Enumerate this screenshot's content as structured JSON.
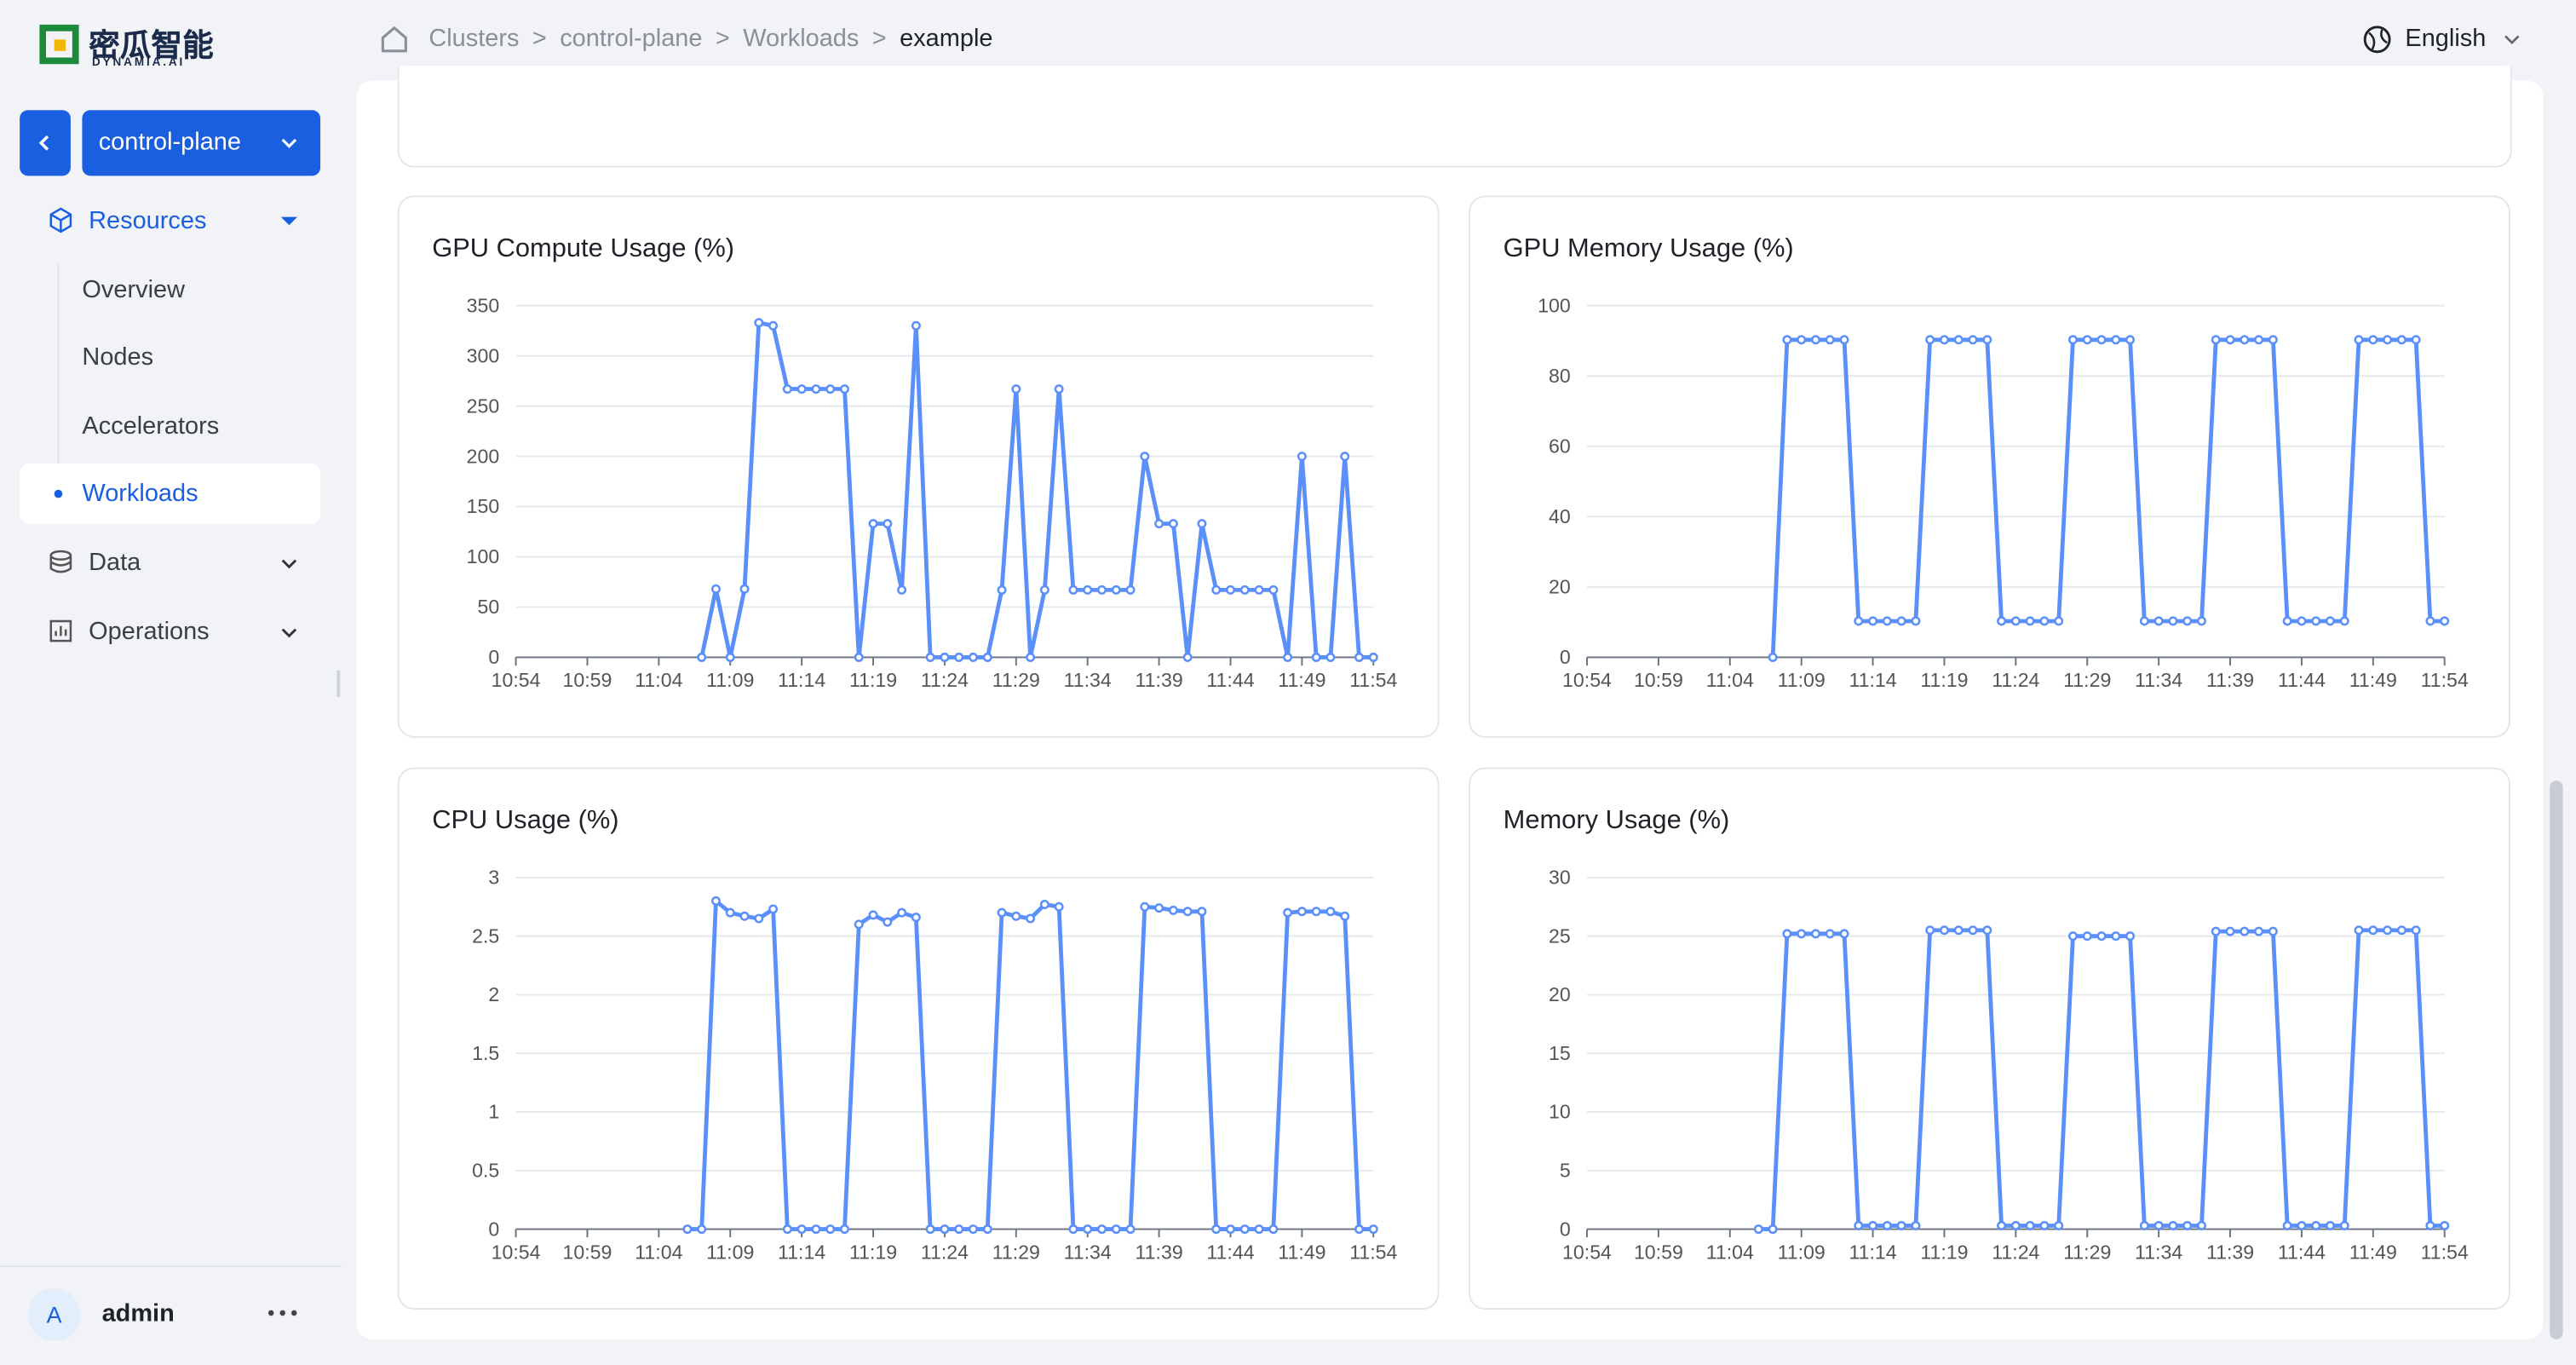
{
  "logo": {
    "name": "密瓜智能",
    "sub": "DYNAMIA.AI"
  },
  "breadcrumb": [
    "Clusters",
    "control-plane",
    "Workloads",
    "example"
  ],
  "breadcrumb_separator": ">",
  "language": "English",
  "sidebar": {
    "cluster": "control-plane",
    "menu": [
      {
        "label": "Resources",
        "children": [
          "Overview",
          "Nodes",
          "Accelerators",
          "Workloads"
        ]
      },
      {
        "label": "Data"
      },
      {
        "label": "Operations"
      }
    ],
    "user": {
      "avatar": "A",
      "name": "admin"
    }
  },
  "chart_data": [
    {
      "type": "line",
      "title": "GPU Compute Usage (%)",
      "color": "#5b8ff9",
      "grid": true,
      "categories": [
        "10:54",
        null,
        null,
        null,
        null,
        "10:59",
        null,
        null,
        null,
        null,
        "11:04",
        null,
        null,
        null,
        null,
        "11:09",
        null,
        null,
        null,
        null,
        "11:14",
        null,
        null,
        null,
        null,
        "11:19",
        null,
        null,
        null,
        null,
        "11:24",
        null,
        null,
        null,
        null,
        "11:29",
        null,
        null,
        null,
        null,
        "11:34",
        null,
        null,
        null,
        null,
        "11:39",
        null,
        null,
        null,
        null,
        "11:44",
        null,
        null,
        null,
        null,
        "11:49",
        null,
        null,
        null,
        null,
        "11:54"
      ],
      "values": [
        null,
        null,
        null,
        null,
        null,
        null,
        null,
        null,
        null,
        null,
        null,
        null,
        null,
        0,
        68,
        0,
        68,
        333,
        330,
        267,
        267,
        267,
        267,
        267,
        0,
        133,
        133,
        67,
        330,
        0,
        0,
        0,
        0,
        0,
        67,
        267,
        0,
        67,
        267,
        67,
        67,
        67,
        67,
        67,
        200,
        133,
        133,
        0,
        133,
        67,
        67,
        67,
        67,
        67,
        0,
        200,
        0,
        0,
        200,
        0,
        0
      ],
      "ylim": [
        0,
        350
      ],
      "yticks": [
        0,
        50,
        100,
        150,
        200,
        250,
        300,
        350
      ]
    },
    {
      "type": "line",
      "title": "GPU Memory Usage (%)",
      "color": "#5b8ff9",
      "grid": true,
      "categories": [
        "10:54",
        null,
        null,
        null,
        null,
        "10:59",
        null,
        null,
        null,
        null,
        "11:04",
        null,
        null,
        null,
        null,
        "11:09",
        null,
        null,
        null,
        null,
        "11:14",
        null,
        null,
        null,
        null,
        "11:19",
        null,
        null,
        null,
        null,
        "11:24",
        null,
        null,
        null,
        null,
        "11:29",
        null,
        null,
        null,
        null,
        "11:34",
        null,
        null,
        null,
        null,
        "11:39",
        null,
        null,
        null,
        null,
        "11:44",
        null,
        null,
        null,
        null,
        "11:49",
        null,
        null,
        null,
        null,
        "11:54"
      ],
      "values": [
        null,
        null,
        null,
        null,
        null,
        null,
        null,
        null,
        null,
        null,
        null,
        null,
        null,
        0,
        90.3,
        90.3,
        90.3,
        90.3,
        90.3,
        10.3,
        10.3,
        10.3,
        10.3,
        10.3,
        90.3,
        90.3,
        90.3,
        90.3,
        90.3,
        10.3,
        10.3,
        10.3,
        10.3,
        10.3,
        90.3,
        90.3,
        90.3,
        90.3,
        90.3,
        10.3,
        10.3,
        10.3,
        10.3,
        10.3,
        90.3,
        90.3,
        90.3,
        90.3,
        90.3,
        10.3,
        10.3,
        10.3,
        10.3,
        10.3,
        90.3,
        90.3,
        90.3,
        90.3,
        90.3,
        10.3,
        10.3
      ],
      "ylim": [
        0,
        100
      ],
      "yticks": [
        0,
        20,
        40,
        60,
        80,
        100
      ]
    },
    {
      "type": "line",
      "title": "CPU Usage (%)",
      "color": "#5b8ff9",
      "grid": true,
      "categories": [
        "10:54",
        null,
        null,
        null,
        null,
        "10:59",
        null,
        null,
        null,
        null,
        "11:04",
        null,
        null,
        null,
        null,
        "11:09",
        null,
        null,
        null,
        null,
        "11:14",
        null,
        null,
        null,
        null,
        "11:19",
        null,
        null,
        null,
        null,
        "11:24",
        null,
        null,
        null,
        null,
        "11:29",
        null,
        null,
        null,
        null,
        "11:34",
        null,
        null,
        null,
        null,
        "11:39",
        null,
        null,
        null,
        null,
        "11:44",
        null,
        null,
        null,
        null,
        "11:49",
        null,
        null,
        null,
        null,
        "11:54"
      ],
      "values": [
        null,
        null,
        null,
        null,
        null,
        null,
        null,
        null,
        null,
        null,
        null,
        null,
        0,
        0,
        2.8,
        2.7,
        2.67,
        2.65,
        2.73,
        0,
        0,
        0,
        0,
        0,
        2.6,
        2.68,
        2.62,
        2.7,
        2.66,
        0,
        0,
        0,
        0,
        0,
        2.7,
        2.67,
        2.65,
        2.77,
        2.75,
        0,
        0,
        0,
        0,
        0,
        2.75,
        2.74,
        2.72,
        2.71,
        2.71,
        0,
        0,
        0,
        0,
        0,
        2.7,
        2.71,
        2.71,
        2.71,
        2.67,
        0,
        0
      ],
      "ylim": [
        0,
        3
      ],
      "yticks": [
        0,
        0.5,
        1,
        1.5,
        2,
        2.5,
        3
      ]
    },
    {
      "type": "line",
      "title": "Memory Usage (%)",
      "color": "#5b8ff9",
      "grid": true,
      "categories": [
        "10:54",
        null,
        null,
        null,
        null,
        "10:59",
        null,
        null,
        null,
        null,
        "11:04",
        null,
        null,
        null,
        null,
        "11:09",
        null,
        null,
        null,
        null,
        "11:14",
        null,
        null,
        null,
        null,
        "11:19",
        null,
        null,
        null,
        null,
        "11:24",
        null,
        null,
        null,
        null,
        "11:29",
        null,
        null,
        null,
        null,
        "11:34",
        null,
        null,
        null,
        null,
        "11:39",
        null,
        null,
        null,
        null,
        "11:44",
        null,
        null,
        null,
        null,
        "11:49",
        null,
        null,
        null,
        null,
        "11:54"
      ],
      "values": [
        null,
        null,
        null,
        null,
        null,
        null,
        null,
        null,
        null,
        null,
        null,
        null,
        0,
        0,
        25.2,
        25.2,
        25.2,
        25.2,
        25.2,
        0.3,
        0.3,
        0.3,
        0.3,
        0.3,
        25.5,
        25.5,
        25.5,
        25.5,
        25.5,
        0.3,
        0.3,
        0.3,
        0.3,
        0.3,
        25,
        25,
        25,
        25,
        25,
        0.3,
        0.3,
        0.3,
        0.3,
        0.3,
        25.4,
        25.4,
        25.4,
        25.4,
        25.4,
        0.3,
        0.3,
        0.3,
        0.3,
        0.3,
        25.5,
        25.5,
        25.5,
        25.5,
        25.5,
        0.3,
        0.3
      ],
      "ylim": [
        0,
        30
      ],
      "yticks": [
        0,
        5,
        10,
        15,
        20,
        25,
        30
      ]
    }
  ]
}
